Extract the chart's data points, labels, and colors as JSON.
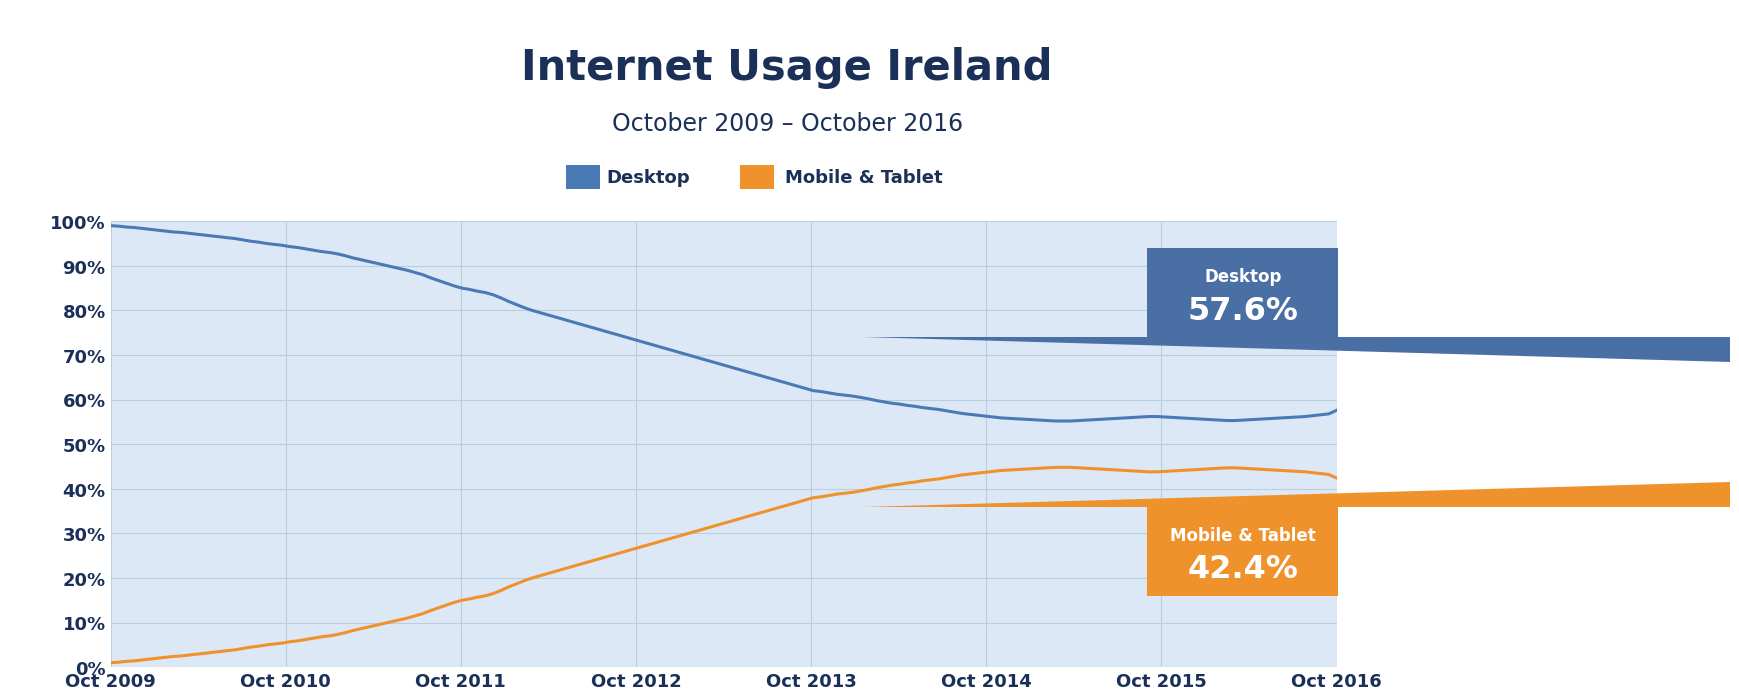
{
  "title": "Internet Usage Ireland",
  "subtitle": "October 2009 – October 2016",
  "legend_desktop": "Desktop",
  "legend_mobile": "Mobile & Tablet",
  "desktop_label": "Desktop",
  "desktop_value": "57.6%",
  "mobile_label": "Mobile & Tablet",
  "mobile_value": "42.4%",
  "desktop_color": "#4a7ab5",
  "mobile_color": "#f0922b",
  "desktop_box_color": "#4a6fa5",
  "mobile_box_color": "#f0922b",
  "background_color": "#dce8f5",
  "chart_bg_color": "#dce8f5",
  "outer_background": "#ffffff",
  "header_bg": "#eaf2fb",
  "grid_color": "#b8cfe0",
  "yticks": [
    0,
    10,
    20,
    30,
    40,
    50,
    60,
    70,
    80,
    90,
    100
  ],
  "xtick_labels": [
    "Oct 2009",
    "Oct 2010",
    "Oct 2011",
    "Oct 2012",
    "Oct 2013",
    "Oct 2014",
    "Oct 2015",
    "Oct 2016"
  ],
  "title_color": "#1a3058",
  "subtitle_color": "#1a3058",
  "tick_color": "#1a3058",
  "desktop_data": [
    99.0,
    98.9,
    98.7,
    98.6,
    98.4,
    98.2,
    98.0,
    97.8,
    97.6,
    97.5,
    97.3,
    97.1,
    96.9,
    96.7,
    96.5,
    96.3,
    96.1,
    95.8,
    95.5,
    95.3,
    95.0,
    94.8,
    94.6,
    94.3,
    94.1,
    93.8,
    93.5,
    93.2,
    93.0,
    92.7,
    92.3,
    91.8,
    91.4,
    91.0,
    90.6,
    90.2,
    89.8,
    89.4,
    89.0,
    88.5,
    88.0,
    87.3,
    86.7,
    86.1,
    85.5,
    85.0,
    84.7,
    84.3,
    84.0,
    83.5,
    82.8,
    82.0,
    81.3,
    80.6,
    80.0,
    79.5,
    79.0,
    78.5,
    78.0,
    77.5,
    77.0,
    76.5,
    76.0,
    75.5,
    75.0,
    74.5,
    74.0,
    73.5,
    73.0,
    72.5,
    72.0,
    71.5,
    71.0,
    70.5,
    70.0,
    69.5,
    69.0,
    68.5,
    68.0,
    67.5,
    67.0,
    66.5,
    66.0,
    65.5,
    65.0,
    64.5,
    64.0,
    63.5,
    63.0,
    62.5,
    62.0,
    61.8,
    61.5,
    61.2,
    61.0,
    60.8,
    60.5,
    60.2,
    59.8,
    59.5,
    59.2,
    59.0,
    58.7,
    58.5,
    58.2,
    58.0,
    57.8,
    57.5,
    57.2,
    56.9,
    56.7,
    56.5,
    56.3,
    56.1,
    55.9,
    55.8,
    55.7,
    55.6,
    55.5,
    55.4,
    55.3,
    55.2,
    55.2,
    55.2,
    55.3,
    55.4,
    55.5,
    55.6,
    55.7,
    55.8,
    55.9,
    56.0,
    56.1,
    56.2,
    56.2,
    56.1,
    56.0,
    55.9,
    55.8,
    55.7,
    55.6,
    55.5,
    55.4,
    55.3,
    55.3,
    55.4,
    55.5,
    55.6,
    55.7,
    55.8,
    55.9,
    56.0,
    56.1,
    56.2,
    56.4,
    56.6,
    56.8,
    57.6
  ],
  "mobile_data": [
    1.0,
    1.1,
    1.3,
    1.4,
    1.6,
    1.8,
    2.0,
    2.2,
    2.4,
    2.5,
    2.7,
    2.9,
    3.1,
    3.3,
    3.5,
    3.7,
    3.9,
    4.2,
    4.5,
    4.7,
    5.0,
    5.2,
    5.4,
    5.7,
    5.9,
    6.2,
    6.5,
    6.8,
    7.0,
    7.3,
    7.7,
    8.2,
    8.6,
    9.0,
    9.4,
    9.8,
    10.2,
    10.6,
    11.0,
    11.5,
    12.0,
    12.7,
    13.3,
    13.9,
    14.5,
    15.0,
    15.3,
    15.7,
    16.0,
    16.5,
    17.2,
    18.0,
    18.7,
    19.4,
    20.0,
    20.5,
    21.0,
    21.5,
    22.0,
    22.5,
    23.0,
    23.5,
    24.0,
    24.5,
    25.0,
    25.5,
    26.0,
    26.5,
    27.0,
    27.5,
    28.0,
    28.5,
    29.0,
    29.5,
    30.0,
    30.5,
    31.0,
    31.5,
    32.0,
    32.5,
    33.0,
    33.5,
    34.0,
    34.5,
    35.0,
    35.5,
    36.0,
    36.5,
    37.0,
    37.5,
    38.0,
    38.2,
    38.5,
    38.8,
    39.0,
    39.2,
    39.5,
    39.8,
    40.2,
    40.5,
    40.8,
    41.0,
    41.3,
    41.5,
    41.8,
    42.0,
    42.2,
    42.5,
    42.8,
    43.1,
    43.3,
    43.5,
    43.7,
    43.9,
    44.1,
    44.2,
    44.3,
    44.4,
    44.5,
    44.6,
    44.7,
    44.8,
    44.8,
    44.8,
    44.7,
    44.6,
    44.5,
    44.4,
    44.3,
    44.2,
    44.1,
    44.0,
    43.9,
    43.8,
    43.8,
    43.9,
    44.0,
    44.1,
    44.2,
    44.3,
    44.4,
    44.5,
    44.6,
    44.7,
    44.7,
    44.6,
    44.5,
    44.4,
    44.3,
    44.2,
    44.1,
    44.0,
    43.9,
    43.8,
    43.6,
    43.4,
    43.2,
    42.4
  ]
}
